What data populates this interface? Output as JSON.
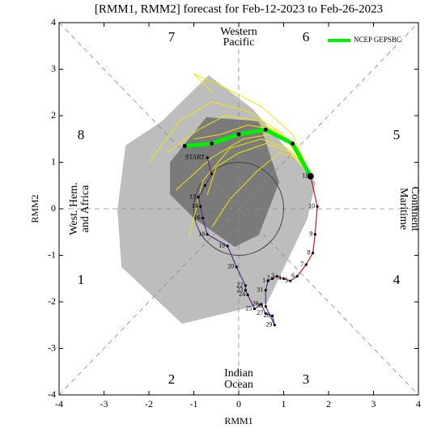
{
  "chart_data": {
    "type": "line",
    "title": "[RMM1, RMM2] forecast for Feb-12-2023 to Feb-26-2023",
    "x_label": "RMM1",
    "y_label": "RMM2",
    "xlim": [
      -4,
      4
    ],
    "ylim": [
      -4,
      4
    ],
    "xticks": [
      -4,
      -3,
      -2,
      -1,
      0,
      1,
      2,
      3,
      4
    ],
    "yticks": [
      -4,
      -3,
      -2,
      -1,
      0,
      1,
      2,
      3,
      4
    ],
    "phases": [
      "1",
      "2",
      "3",
      "4",
      "5",
      "6",
      "7",
      "8"
    ],
    "regions": {
      "top": [
        "Western",
        "Pacific"
      ],
      "right": [
        "Maritime",
        "Continent"
      ],
      "bottom": [
        "Indian",
        "Ocean"
      ],
      "left": [
        "West. Hem.",
        "and Africa"
      ]
    },
    "circle_radius": 1,
    "legend": "upper right",
    "areas": [
      {
        "color": "#bdbdbd",
        "x": [
          -0.67,
          0.32,
          1.71,
          1.53,
          0.63,
          -1.26,
          -2.61,
          -2.7,
          -2.52,
          -1.71
        ],
        "y": [
          2.87,
          2.14,
          0.57,
          -0.21,
          -2.03,
          -2.47,
          -1.25,
          -0.03,
          1.36,
          1.88
        ]
      },
      {
        "color": "#7a7a7a",
        "x": [
          -1.53,
          -0.72,
          0.45,
          0.9,
          0.45,
          -0.09,
          -0.99,
          -1.53
        ],
        "y": [
          1.0,
          1.97,
          1.88,
          0.57,
          -0.56,
          -0.82,
          -0.21,
          0.31
        ]
      }
    ],
    "members": {
      "color": "#f2e600",
      "lines": [
        {
          "x": [
            1.6,
            1.3,
            0.8,
            0.2,
            -0.4,
            -1.0
          ],
          "y": [
            0.7,
            1.3,
            1.7,
            1.8,
            1.6,
            1.5
          ]
        },
        {
          "x": [
            1.6,
            1.1,
            0.4,
            -0.3,
            -0.9,
            -1.6
          ],
          "y": [
            0.7,
            1.5,
            1.9,
            2.0,
            1.7,
            1.2
          ]
        },
        {
          "x": [
            1.6,
            1.2,
            0.6,
            0.0,
            -0.5,
            -0.7
          ],
          "y": [
            0.7,
            1.2,
            1.4,
            1.2,
            0.9,
            0.3
          ]
        },
        {
          "x": [
            1.6,
            1.3,
            0.9,
            0.4,
            -0.2,
            -0.6
          ],
          "y": [
            0.7,
            1.1,
            1.2,
            0.8,
            0.2,
            -0.4
          ]
        },
        {
          "x": [
            1.6,
            1.0,
            0.2,
            -0.6,
            -1.3,
            -2.0
          ],
          "y": [
            0.7,
            1.6,
            2.1,
            2.3,
            1.9,
            1.0
          ]
        },
        {
          "x": [
            1.6,
            1.2,
            0.7,
            0.1,
            -0.6,
            -1.4
          ],
          "y": [
            0.7,
            1.4,
            1.6,
            1.5,
            1.1,
            0.4
          ]
        },
        {
          "x": [
            1.6,
            1.1,
            0.5,
            -0.2,
            -0.8,
            -1.1
          ],
          "y": [
            0.7,
            1.3,
            1.5,
            1.3,
            0.6,
            -0.6
          ]
        },
        {
          "x": [
            1.6,
            1.2,
            0.5,
            -0.3,
            -1.0,
            -0.6
          ],
          "y": [
            0.7,
            1.6,
            2.2,
            2.6,
            2.9,
            2.5
          ]
        }
      ]
    },
    "series": [
      {
        "color": "#5a2a8a",
        "x": [
          -0.7,
          -0.6,
          -0.75,
          -0.9,
          -0.85,
          -0.8,
          -0.7,
          -0.25,
          -0.05,
          0.15,
          0.15,
          0.2,
          0.35,
          0.5,
          0.6,
          0.75,
          0.8,
          0.6,
          0.6,
          0.65,
          0.75
        ],
        "y": [
          1.1,
          0.75,
          0.5,
          0.25,
          0.05,
          -0.2,
          -0.55,
          -0.8,
          -1.25,
          -1.65,
          -1.75,
          -1.85,
          -2.15,
          -2.05,
          -2.25,
          -2.3,
          -2.5,
          -2.1,
          -1.75,
          -1.55,
          -1.5
        ],
        "labels": [
          "START",
          null,
          null,
          "13",
          "14",
          "16",
          "18",
          "19",
          "20",
          "22",
          "23",
          "24",
          "25",
          "26",
          "27",
          "28",
          "29",
          "30",
          "31",
          "1",
          "2"
        ]
      },
      {
        "color": "#b02020",
        "x": [
          0.75,
          0.85,
          1.0,
          1.15,
          1.3,
          1.5,
          1.65,
          1.7,
          1.75,
          1.6
        ],
        "y": [
          -1.5,
          -1.45,
          -1.5,
          -1.55,
          -1.45,
          -1.2,
          -0.95,
          -0.55,
          0.05,
          0.7
        ],
        "labels": [
          null,
          "3",
          "4",
          "5",
          "6",
          "7",
          "8",
          "9",
          "10",
          "11"
        ]
      },
      {
        "name": "NCEP GEPSBC",
        "color": "#00ee00",
        "x": [
          1.6,
          1.2,
          0.6,
          0.0,
          -0.6,
          -1.2
        ],
        "y": [
          0.7,
          1.4,
          1.7,
          1.6,
          1.4,
          1.35
        ]
      }
    ]
  }
}
